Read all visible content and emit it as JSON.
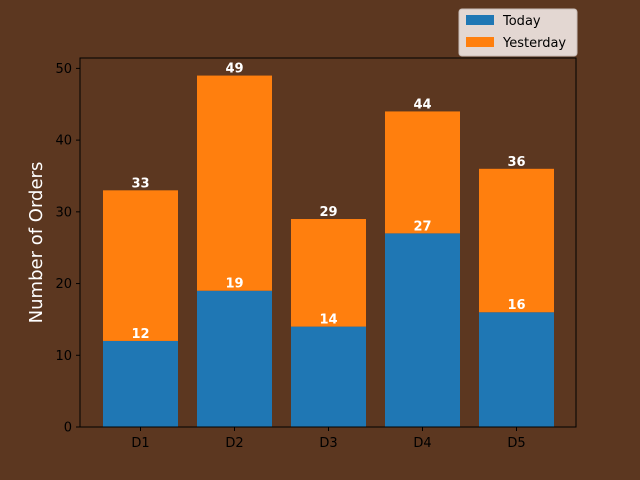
{
  "chart_data": {
    "type": "bar",
    "stacked": true,
    "categories": [
      "D1",
      "D2",
      "D3",
      "D4",
      "D5"
    ],
    "series": [
      {
        "name": "Today",
        "values": [
          12,
          19,
          14,
          27,
          16
        ],
        "color": "#1f77b4"
      },
      {
        "name": "Yesterday",
        "values": [
          21,
          30,
          15,
          17,
          20
        ],
        "color": "#ff7f0e"
      }
    ],
    "segment_labels": [
      [
        "12",
        "19",
        "14",
        "27",
        "16"
      ],
      [
        "33",
        "49",
        "29",
        "44",
        "36"
      ]
    ],
    "title": "",
    "xlabel": "",
    "ylabel": "Number of Orders",
    "ylim": [
      0,
      51.45
    ],
    "yticks": [
      0,
      10,
      20,
      30,
      40,
      50
    ],
    "legend_position": "top-right-outside",
    "grid": false,
    "background": "#5c3720",
    "plot_background": "#5c3720"
  }
}
